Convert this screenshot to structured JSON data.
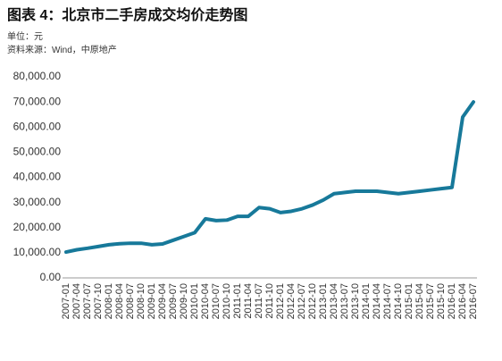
{
  "chart_data": {
    "type": "line",
    "title": "图表 4：北京市二手房成交均价走势图",
    "subtitle": "单位：元",
    "source": "资料来源：Wind，中原地产",
    "categories": [
      "2007-01",
      "2007-04",
      "2007-07",
      "2007-10",
      "2008-01",
      "2008-04",
      "2008-07",
      "2008-10",
      "2009-01",
      "2009-04",
      "2009-07",
      "2009-10",
      "2010-01",
      "2010-04",
      "2010-07",
      "2010-10",
      "2011-01",
      "2011-04",
      "2011-07",
      "2011-10",
      "2012-01",
      "2012-04",
      "2012-07",
      "2012-10",
      "2013-01",
      "2013-04",
      "2013-07",
      "2013-10",
      "2014-01",
      "2014-04",
      "2014-07",
      "2014-10",
      "2015-01",
      "2015-04",
      "2015-07",
      "2015-10",
      "2016-01",
      "2016-04",
      "2016-07"
    ],
    "values": [
      10300,
      11200,
      11800,
      12500,
      13200,
      13600,
      13800,
      13800,
      13200,
      13500,
      15000,
      16500,
      18000,
      23500,
      22800,
      23000,
      24500,
      24500,
      28000,
      27500,
      26000,
      26500,
      27500,
      29000,
      31000,
      33500,
      34000,
      34500,
      34500,
      34500,
      34000,
      33500,
      34000,
      34500,
      35000,
      35500,
      36000,
      64000,
      70000
    ],
    "color": "#17799a",
    "ylim": [
      0,
      80000
    ],
    "yticks": [
      {
        "value": 0,
        "label": "0.00"
      },
      {
        "value": 10000,
        "label": "10,000.00"
      },
      {
        "value": 20000,
        "label": "20,000.00"
      },
      {
        "value": 30000,
        "label": "30,000.00"
      },
      {
        "value": 40000,
        "label": "40,000.00"
      },
      {
        "value": 50000,
        "label": "50,000.00"
      },
      {
        "value": 60000,
        "label": "60,000.00"
      },
      {
        "value": 70000,
        "label": "70,000.00"
      },
      {
        "value": 80000,
        "label": "80,000.00"
      }
    ],
    "grid": false
  }
}
